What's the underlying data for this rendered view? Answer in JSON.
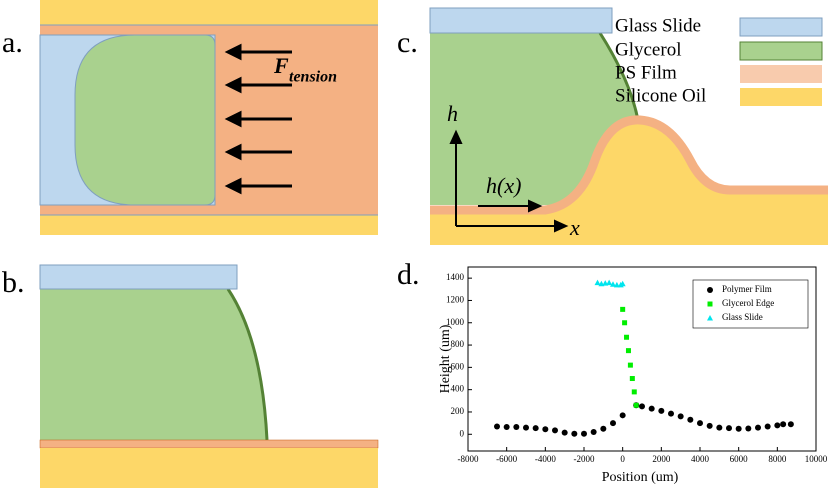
{
  "panels": {
    "a": {
      "label": "a.",
      "force": {
        "symbol": "F",
        "subscript": "tension"
      }
    },
    "b": {
      "label": "b."
    },
    "c": {
      "label": "c.",
      "legend": [
        "Glass Slide",
        "Glycerol",
        "PS Film",
        "Silicone Oil"
      ],
      "axis_y": "h",
      "axis_x": "x",
      "profile": "h(x)"
    },
    "d": {
      "label": "d."
    }
  },
  "chart_data": {
    "type": "scatter",
    "xlabel": "Position (um)",
    "ylabel": "Height (um)",
    "xlim": [
      -8000,
      10000
    ],
    "xticks": [
      -8000,
      -6000,
      -4000,
      -2000,
      0,
      2000,
      4000,
      6000,
      8000,
      10000
    ],
    "ylim": [
      -150,
      1500
    ],
    "yticks": [
      0,
      200,
      400,
      600,
      800,
      1000,
      1200,
      1400
    ],
    "legend": "upper right",
    "series": [
      {
        "name": "Polymer Film",
        "color": "#000000",
        "marker": "circle",
        "x": [
          -6500,
          -6000,
          -5500,
          -5000,
          -4500,
          -4000,
          -3500,
          -3000,
          -2500,
          -2000,
          -1500,
          -1000,
          -500,
          0,
          700,
          1000,
          1500,
          2000,
          2500,
          3000,
          3500,
          4000,
          4500,
          5000,
          5500,
          6000,
          6500,
          7000,
          7500,
          8000,
          8300,
          8700
        ],
        "values": [
          70,
          65,
          65,
          60,
          55,
          45,
          35,
          15,
          5,
          5,
          20,
          50,
          100,
          170,
          260,
          250,
          230,
          210,
          185,
          160,
          130,
          100,
          75,
          60,
          55,
          50,
          52,
          60,
          70,
          80,
          90,
          90
        ]
      },
      {
        "name": "Glycerol Edge",
        "color": "#00ee00",
        "marker": "square",
        "x": [
          0,
          100,
          200,
          300,
          400,
          500,
          600,
          700
        ],
        "values": [
          1120,
          1000,
          870,
          750,
          620,
          500,
          380,
          260
        ]
      },
      {
        "name": "Glass Slide",
        "color": "#00e5ee",
        "marker": "triangle",
        "x": [
          -1300,
          -1100,
          -900,
          -700,
          -500,
          -300,
          -100,
          0
        ],
        "values": [
          1360,
          1350,
          1355,
          1360,
          1345,
          1340,
          1340,
          1350
        ]
      }
    ]
  }
}
